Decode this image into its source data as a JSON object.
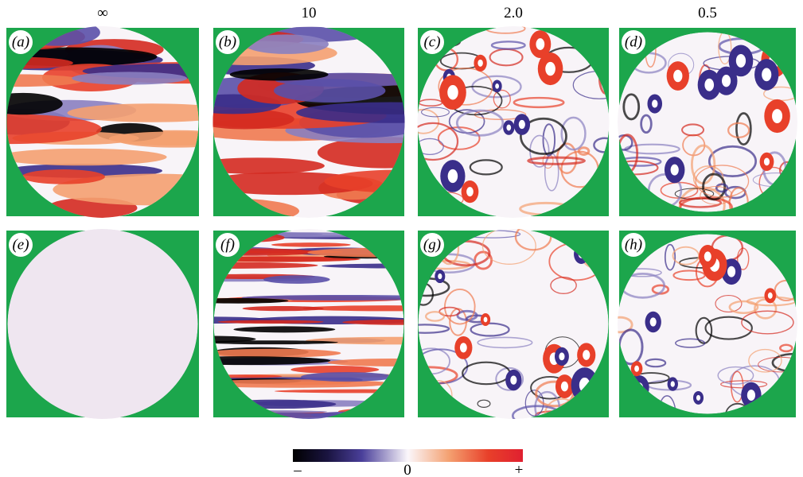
{
  "header": {
    "columns": [
      "∞",
      "10",
      "2.0",
      "0.5"
    ]
  },
  "panels": [
    {
      "label": "(a)"
    },
    {
      "label": "(b)"
    },
    {
      "label": "(c)"
    },
    {
      "label": "(d)"
    },
    {
      "label": "(e)"
    },
    {
      "label": "(f)"
    },
    {
      "label": "(g)"
    },
    {
      "label": "(h)"
    }
  ],
  "colorbar": {
    "min_label": "–",
    "mid_label": "0",
    "max_label": "+"
  }
}
